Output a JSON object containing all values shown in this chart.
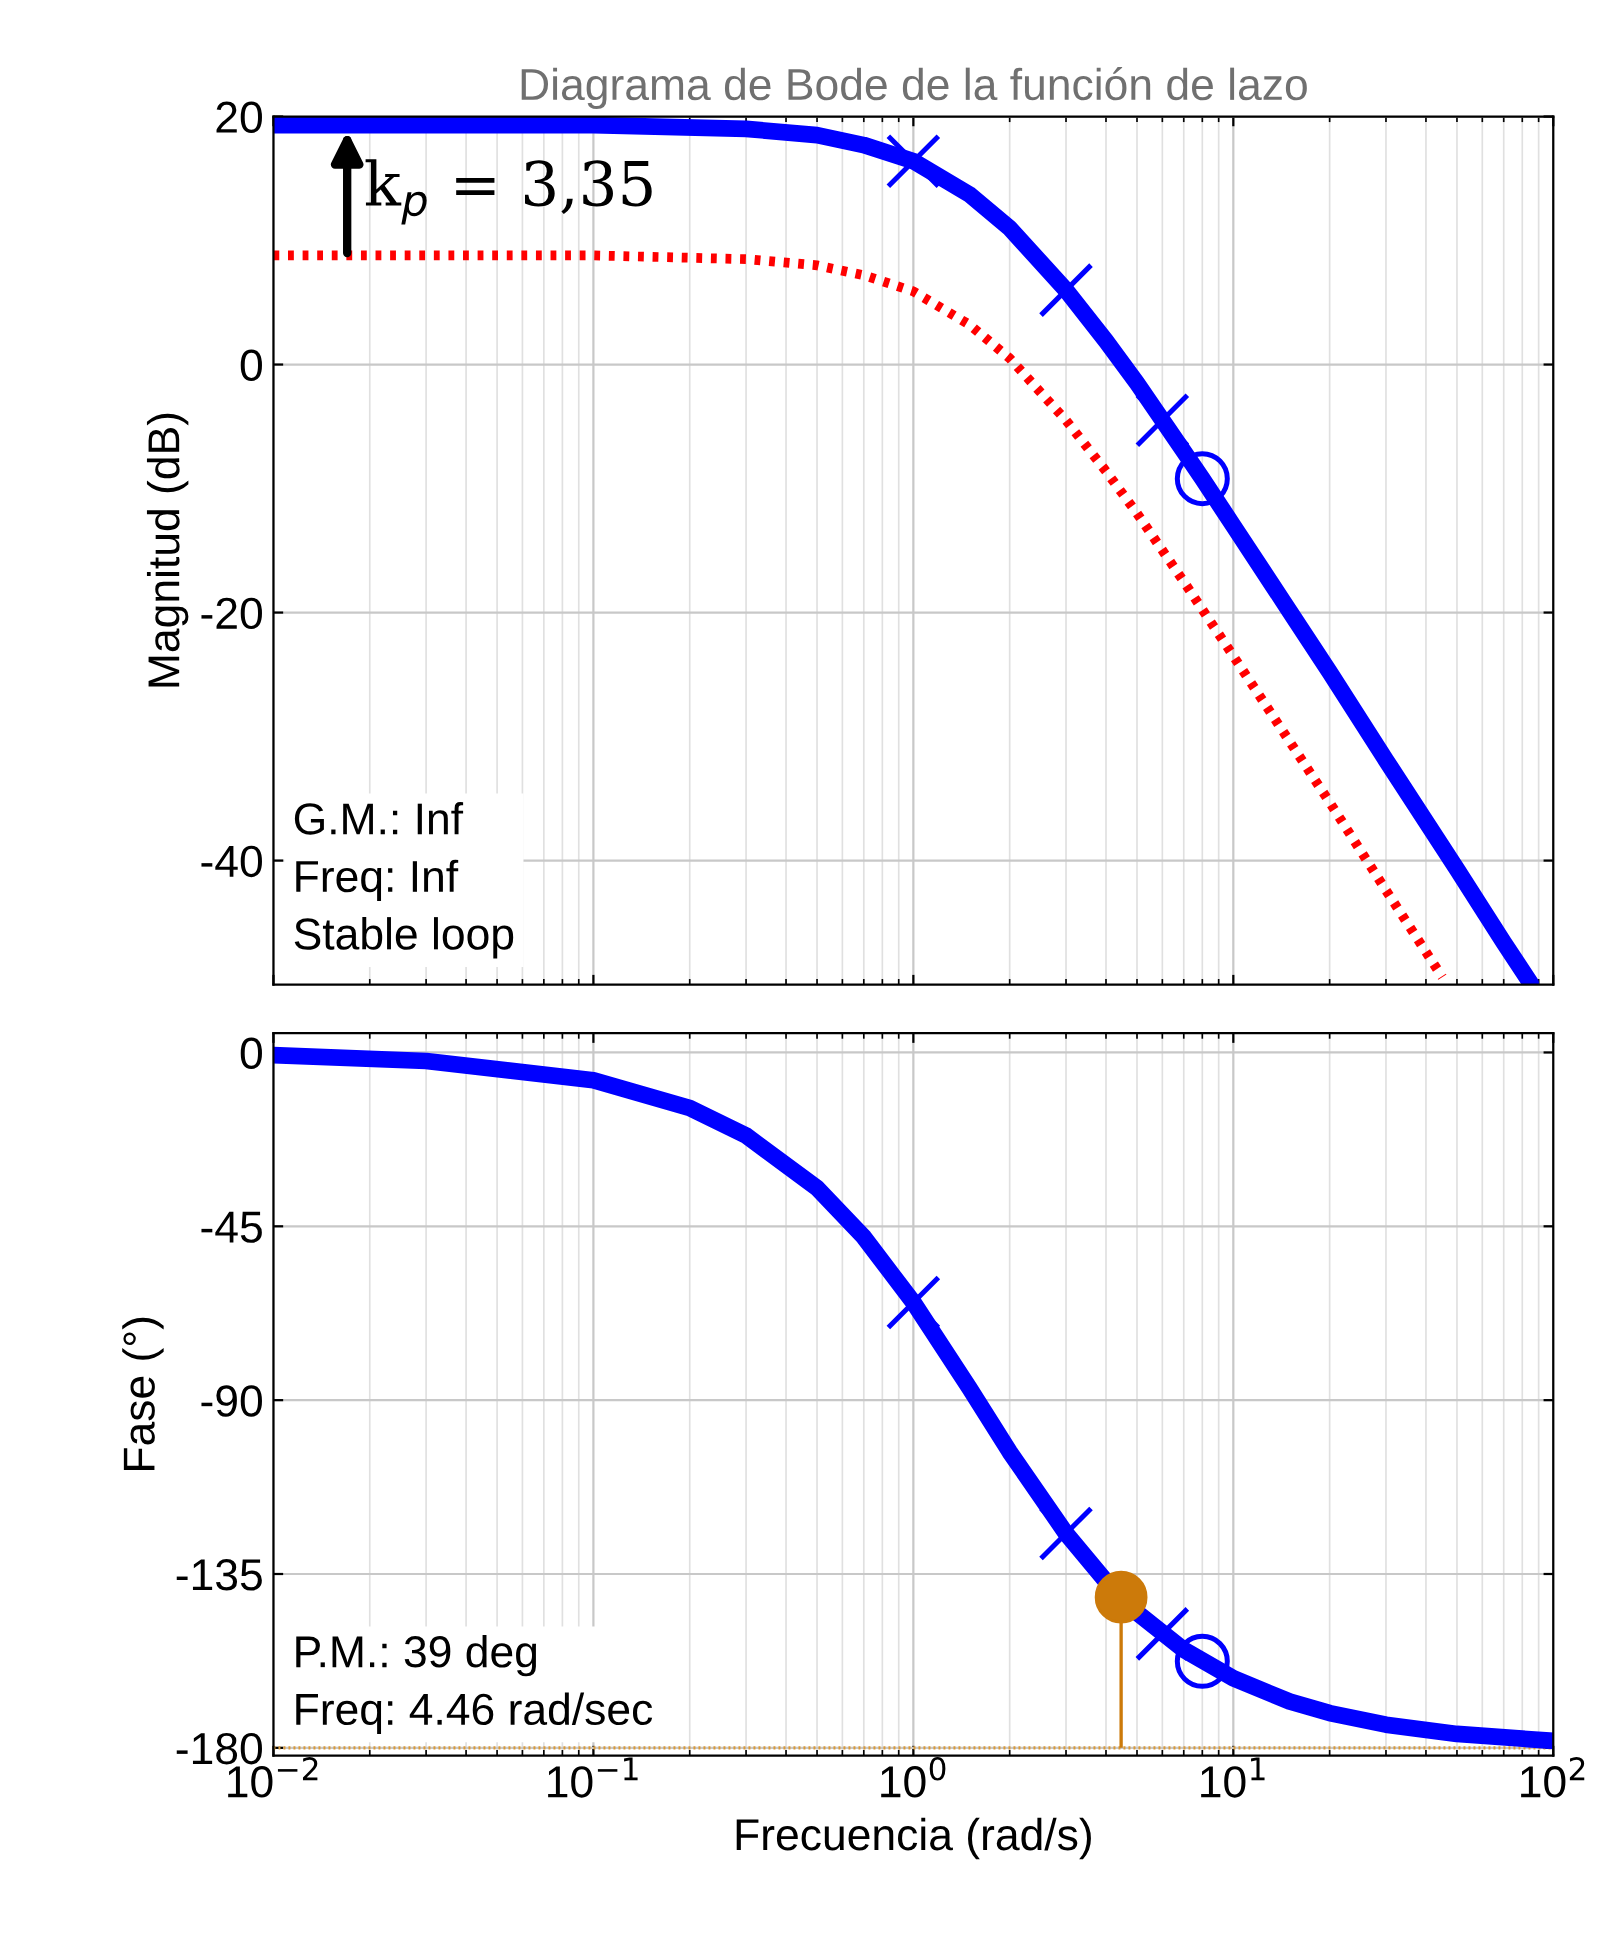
{
  "chart_data": [
    {
      "type": "line",
      "title": "Diagrama de Bode de la función de lazo",
      "ylabel": "Magnitud (dB)",
      "log": "x",
      "grid": true,
      "tick_labels": "y",
      "xlim": [
        0.01,
        100
      ],
      "ylim": [
        -50,
        20
      ],
      "xticks": [
        {
          "value": 0.01,
          "label": null
        },
        {
          "value": 0.1,
          "label": null
        },
        {
          "value": 1,
          "label": null
        },
        {
          "value": 10,
          "label": null
        },
        {
          "value": 100,
          "label": null
        }
      ],
      "yticks": [
        -40,
        -20,
        0,
        20
      ],
      "series": [
        {
          "color": "#ff0000",
          "line_style": "dotted",
          "x": [
            0.01,
            0.1,
            0.3,
            0.5,
            0.7,
            1,
            1.5,
            2,
            3,
            4,
            5,
            7,
            10,
            15,
            20,
            30,
            45
          ],
          "values": [
            8.8,
            8.8,
            8.5,
            8.0,
            7.2,
            5.9,
            3.2,
            0.5,
            -4.5,
            -8.6,
            -12.0,
            -17.5,
            -23.5,
            -30.4,
            -35.3,
            -42.4,
            -49.4
          ]
        },
        {
          "color": "#0000ff",
          "line_style": "solid",
          "x": [
            0.01,
            0.1,
            0.3,
            0.5,
            0.7,
            1,
            1.5,
            2,
            3,
            4,
            5,
            7,
            8,
            10,
            15,
            20,
            30,
            50,
            70,
            85
          ],
          "values": [
            19.3,
            19.3,
            19.0,
            18.5,
            17.7,
            16.4,
            13.7,
            11.0,
            6.0,
            1.9,
            -1.5,
            -7.0,
            -9.2,
            -13.0,
            -19.9,
            -24.8,
            -31.9,
            -40.7,
            -46.6,
            -49.9
          ]
        },
        {
          "type": "scatter",
          "color": "#0000ff",
          "marker": "cross",
          "x": [
            1,
            3,
            6
          ],
          "values": [
            16.4,
            6.0,
            -4.5
          ]
        },
        {
          "type": "scatter",
          "color": "#0000ff",
          "marker": "circle",
          "x": [
            8
          ],
          "values": [
            -9.2
          ]
        }
      ],
      "annotations": [
        {
          "text": "k$_{p}$ = 3,35",
          "x": 0.017,
          "y": 19.3
        },
        "G.M.: Inf\nFreq: Inf\nStable loop"
      ]
    },
    {
      "type": "line",
      "ylabel": "Fase (°)",
      "xlabel": "Frecuencia (rad/s)",
      "log": "x",
      "grid": true,
      "xlim": [
        0.01,
        100
      ],
      "ylim": [
        -182,
        5
      ],
      "xticks": [
        {
          "value": 0.01,
          "label": "10$^{−2}$"
        },
        {
          "value": 0.1,
          "label": "10$^{−1}$"
        },
        {
          "value": 1,
          "label": "10$^{0}$"
        },
        {
          "value": 10,
          "label": "10$^{1}$"
        },
        {
          "value": 100,
          "label": "10$^{2}$"
        }
      ],
      "yticks": [
        0,
        -45,
        -90,
        -135,
        -180
      ],
      "series": [
        {
          "color": "#0000ff",
          "line_style": "solid",
          "x": [
            0.01,
            0.03,
            0.1,
            0.2,
            0.3,
            0.5,
            0.7,
            1,
            1.5,
            2,
            3,
            4,
            5,
            7,
            10,
            15,
            20,
            30,
            50,
            100
          ],
          "values": [
            -0.7,
            -2.2,
            -7.2,
            -14.4,
            -21.5,
            -35.1,
            -47.8,
            -64.7,
            -87.0,
            -103.4,
            -124.5,
            -136.9,
            -145.0,
            -154.6,
            -162.0,
            -168.0,
            -171.0,
            -174.0,
            -176.4,
            -178.2
          ]
        },
        {
          "type": "scatter",
          "color": "#0000ff",
          "marker": "cross",
          "x": [
            1,
            3,
            6
          ],
          "values": [
            -64.7,
            -124.5,
            -150.5
          ]
        },
        {
          "type": "scatter",
          "color": "#0000ff",
          "marker": "circle",
          "x": [
            8
          ],
          "values": [
            -157.6
          ]
        },
        {
          "type": "scatter",
          "color": "#cc7a0a",
          "marker": "circle",
          "x": [
            4.46
          ],
          "values": [
            -141
          ],
          "errors": [
            [
              -180,
              -141
            ]
          ]
        }
      ],
      "ref_lines": [
        {
          "axis": "y",
          "value": -180,
          "color": "#d99a3a",
          "line_style": "dotted"
        }
      ],
      "annotations": [
        "P.M.: 39 deg\nFreq: 4.46 rad/sec"
      ]
    }
  ]
}
